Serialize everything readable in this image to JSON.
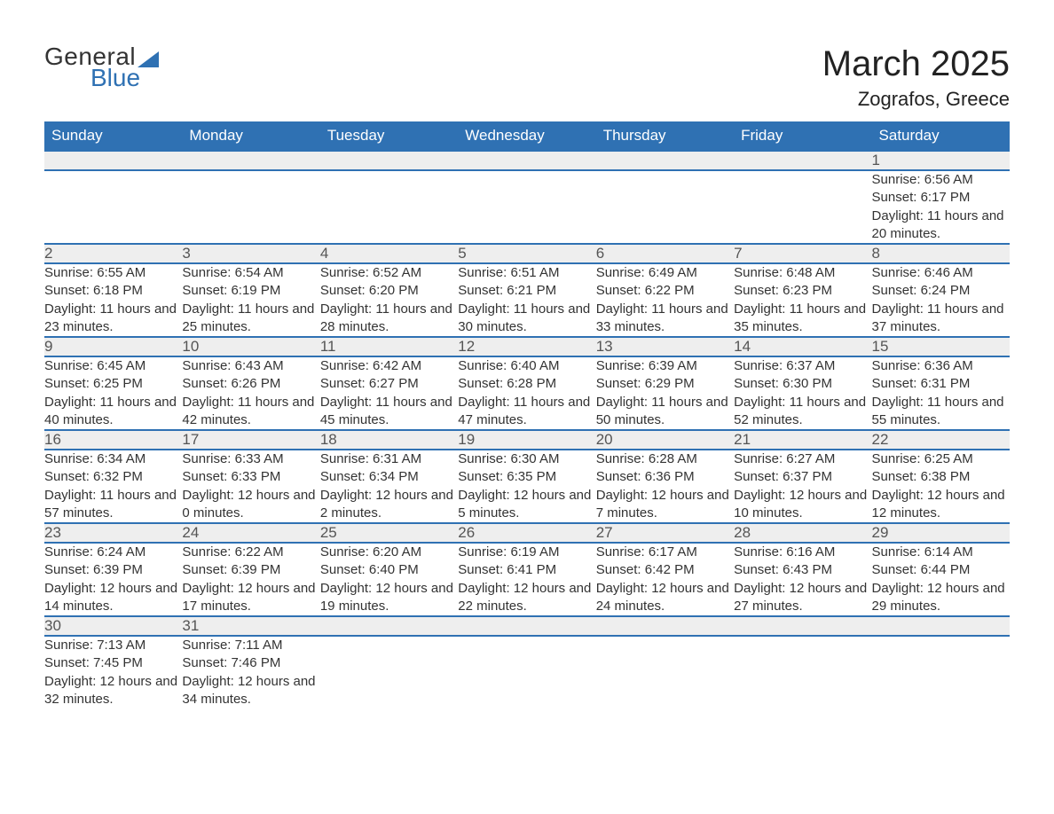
{
  "logo": {
    "text1": "General",
    "text2": "Blue"
  },
  "title": "March 2025",
  "location": "Zografos, Greece",
  "colors": {
    "header_bg": "#2f71b3",
    "header_text": "#ffffff",
    "daynum_bg": "#eeeeee",
    "row_divider": "#2f71b3",
    "text": "#333333"
  },
  "weekdays": [
    "Sunday",
    "Monday",
    "Tuesday",
    "Wednesday",
    "Thursday",
    "Friday",
    "Saturday"
  ],
  "weeks": [
    [
      null,
      null,
      null,
      null,
      null,
      null,
      {
        "n": "1",
        "sr": "6:56 AM",
        "ss": "6:17 PM",
        "dl": "11 hours and 20 minutes."
      }
    ],
    [
      {
        "n": "2",
        "sr": "6:55 AM",
        "ss": "6:18 PM",
        "dl": "11 hours and 23 minutes."
      },
      {
        "n": "3",
        "sr": "6:54 AM",
        "ss": "6:19 PM",
        "dl": "11 hours and 25 minutes."
      },
      {
        "n": "4",
        "sr": "6:52 AM",
        "ss": "6:20 PM",
        "dl": "11 hours and 28 minutes."
      },
      {
        "n": "5",
        "sr": "6:51 AM",
        "ss": "6:21 PM",
        "dl": "11 hours and 30 minutes."
      },
      {
        "n": "6",
        "sr": "6:49 AM",
        "ss": "6:22 PM",
        "dl": "11 hours and 33 minutes."
      },
      {
        "n": "7",
        "sr": "6:48 AM",
        "ss": "6:23 PM",
        "dl": "11 hours and 35 minutes."
      },
      {
        "n": "8",
        "sr": "6:46 AM",
        "ss": "6:24 PM",
        "dl": "11 hours and 37 minutes."
      }
    ],
    [
      {
        "n": "9",
        "sr": "6:45 AM",
        "ss": "6:25 PM",
        "dl": "11 hours and 40 minutes."
      },
      {
        "n": "10",
        "sr": "6:43 AM",
        "ss": "6:26 PM",
        "dl": "11 hours and 42 minutes."
      },
      {
        "n": "11",
        "sr": "6:42 AM",
        "ss": "6:27 PM",
        "dl": "11 hours and 45 minutes."
      },
      {
        "n": "12",
        "sr": "6:40 AM",
        "ss": "6:28 PM",
        "dl": "11 hours and 47 minutes."
      },
      {
        "n": "13",
        "sr": "6:39 AM",
        "ss": "6:29 PM",
        "dl": "11 hours and 50 minutes."
      },
      {
        "n": "14",
        "sr": "6:37 AM",
        "ss": "6:30 PM",
        "dl": "11 hours and 52 minutes."
      },
      {
        "n": "15",
        "sr": "6:36 AM",
        "ss": "6:31 PM",
        "dl": "11 hours and 55 minutes."
      }
    ],
    [
      {
        "n": "16",
        "sr": "6:34 AM",
        "ss": "6:32 PM",
        "dl": "11 hours and 57 minutes."
      },
      {
        "n": "17",
        "sr": "6:33 AM",
        "ss": "6:33 PM",
        "dl": "12 hours and 0 minutes."
      },
      {
        "n": "18",
        "sr": "6:31 AM",
        "ss": "6:34 PM",
        "dl": "12 hours and 2 minutes."
      },
      {
        "n": "19",
        "sr": "6:30 AM",
        "ss": "6:35 PM",
        "dl": "12 hours and 5 minutes."
      },
      {
        "n": "20",
        "sr": "6:28 AM",
        "ss": "6:36 PM",
        "dl": "12 hours and 7 minutes."
      },
      {
        "n": "21",
        "sr": "6:27 AM",
        "ss": "6:37 PM",
        "dl": "12 hours and 10 minutes."
      },
      {
        "n": "22",
        "sr": "6:25 AM",
        "ss": "6:38 PM",
        "dl": "12 hours and 12 minutes."
      }
    ],
    [
      {
        "n": "23",
        "sr": "6:24 AM",
        "ss": "6:39 PM",
        "dl": "12 hours and 14 minutes."
      },
      {
        "n": "24",
        "sr": "6:22 AM",
        "ss": "6:39 PM",
        "dl": "12 hours and 17 minutes."
      },
      {
        "n": "25",
        "sr": "6:20 AM",
        "ss": "6:40 PM",
        "dl": "12 hours and 19 minutes."
      },
      {
        "n": "26",
        "sr": "6:19 AM",
        "ss": "6:41 PM",
        "dl": "12 hours and 22 minutes."
      },
      {
        "n": "27",
        "sr": "6:17 AM",
        "ss": "6:42 PM",
        "dl": "12 hours and 24 minutes."
      },
      {
        "n": "28",
        "sr": "6:16 AM",
        "ss": "6:43 PM",
        "dl": "12 hours and 27 minutes."
      },
      {
        "n": "29",
        "sr": "6:14 AM",
        "ss": "6:44 PM",
        "dl": "12 hours and 29 minutes."
      }
    ],
    [
      {
        "n": "30",
        "sr": "7:13 AM",
        "ss": "7:45 PM",
        "dl": "12 hours and 32 minutes."
      },
      {
        "n": "31",
        "sr": "7:11 AM",
        "ss": "7:46 PM",
        "dl": "12 hours and 34 minutes."
      },
      null,
      null,
      null,
      null,
      null
    ]
  ],
  "labels": {
    "sunrise": "Sunrise: ",
    "sunset": "Sunset: ",
    "daylight": "Daylight: "
  }
}
